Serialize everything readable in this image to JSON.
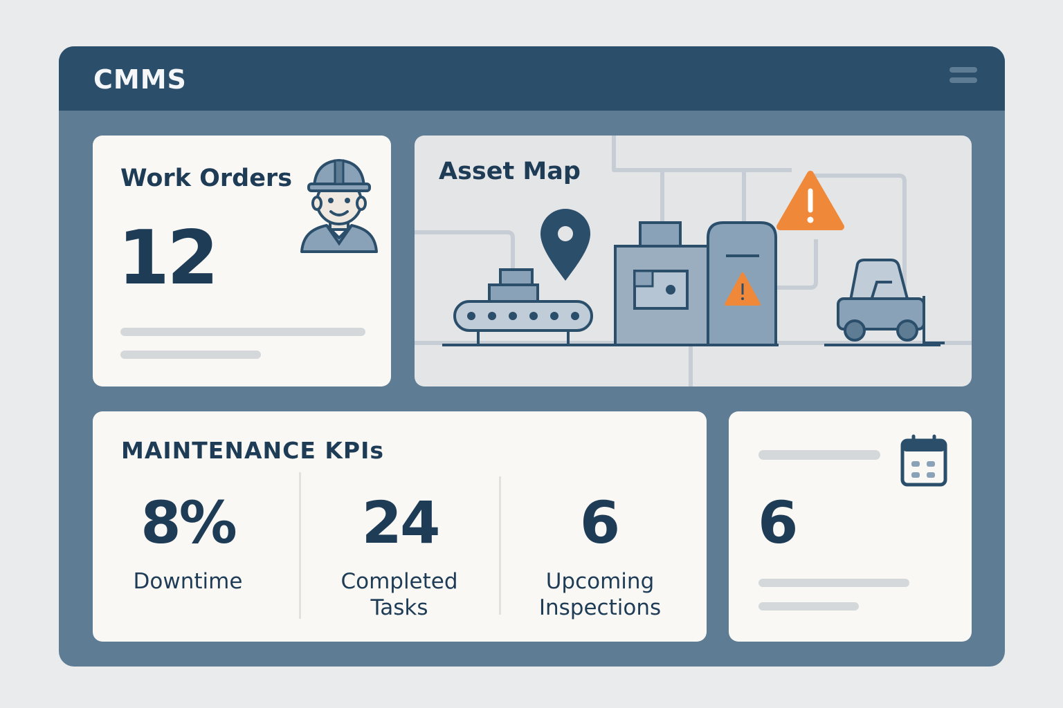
{
  "app": {
    "title": "CMMS"
  },
  "icons": {
    "menu": "hamburger-menu-icon",
    "worker": "worker-hardhat-icon",
    "calendar": "calendar-icon",
    "pin": "map-pin-icon",
    "warning": "warning-triangle-icon"
  },
  "work_orders": {
    "title": "Work Orders",
    "count": "12"
  },
  "asset_map": {
    "title": "Asset Map"
  },
  "kpis": {
    "title": "MAINTENANCE KPIs",
    "items": [
      {
        "value": "8%",
        "label": "Downtime"
      },
      {
        "value": "24",
        "label": "Completed Tasks"
      },
      {
        "value": "6",
        "label": "Upcoming Inspections"
      }
    ]
  },
  "schedule": {
    "value": "6"
  },
  "colors": {
    "header": "#2b4e6b",
    "frame": "#5e7d95",
    "card": "#faf8f4",
    "text": "#1f3c57",
    "alert": "#f0883a"
  }
}
